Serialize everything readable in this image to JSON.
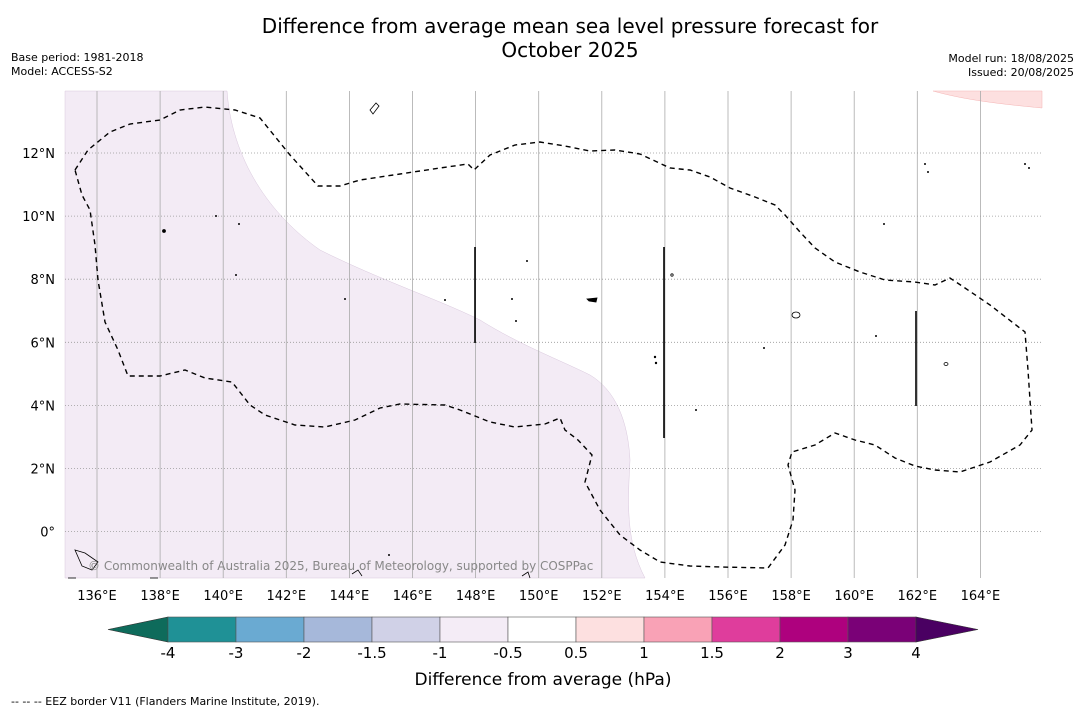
{
  "header": {
    "title_line1": "Difference from average mean sea level pressure forecast for",
    "title_line2": "October 2025",
    "base_period": "Base period: 1981-2018",
    "model": "Model: ACCESS-S2",
    "model_run": "Model run: 18/08/2025",
    "issued": "Issued: 20/08/2025"
  },
  "map": {
    "lon_ticks": [
      "136°E",
      "138°E",
      "140°E",
      "142°E",
      "144°E",
      "146°E",
      "148°E",
      "150°E",
      "152°E",
      "154°E",
      "156°E",
      "158°E",
      "160°E",
      "162°E",
      "164°E"
    ],
    "lat_ticks": [
      "12°N",
      "10°N",
      "8°N",
      "6°N",
      "4°N",
      "2°N",
      "0°"
    ],
    "copyright": "© Commonwealth of Australia 2025, Bureau of Meteorology, supported by COSPPac",
    "fill_colors": {
      "light_purple": "#f3ebf5",
      "light_pink": "#fde0e0"
    }
  },
  "colorbar": {
    "title": "Difference from average (hPa)",
    "labels": [
      "-4",
      "-3",
      "-2",
      "-1.5",
      "-1",
      "-0.5",
      "0.5",
      "1",
      "1.5",
      "2",
      "3",
      "4"
    ],
    "colors": [
      "#1f9196",
      "#6aaad2",
      "#a6b8da",
      "#d0d1e7",
      "#f4ecf6",
      "#ffffff",
      "#fde0e0",
      "#f9a2b6",
      "#df3d9c",
      "#ae017e",
      "#7a0177"
    ],
    "under_color": "#0e6b5b",
    "over_color": "#4a0062"
  },
  "footnote": "--  --  -- EEZ border V11 (Flanders Marine Institute, 2019)."
}
